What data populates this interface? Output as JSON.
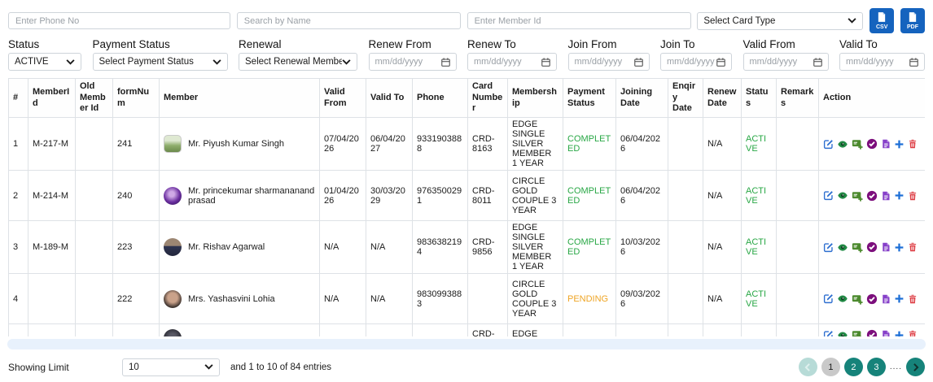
{
  "toolbar": {
    "phone_placeholder": "Enter Phone No",
    "name_placeholder": "Search by Name",
    "member_id_placeholder": "Enter Member Id",
    "card_type_value": "Select Card Type",
    "csv_label": "CSV",
    "pdf_label": "PDF",
    "export_button_color": "#1563be"
  },
  "filters": [
    {
      "id": "status",
      "label": "Status",
      "type": "select",
      "value": "ACTIVE",
      "width": "fw90"
    },
    {
      "id": "payment-status",
      "label": "Payment Status",
      "type": "select",
      "value": "Select Payment Status",
      "width": "fw166"
    },
    {
      "id": "renewal",
      "label": "Renewal",
      "type": "select",
      "value": "Select Renewal Members",
      "width": "fw146"
    },
    {
      "id": "renew-from",
      "label": "Renew From",
      "type": "date",
      "value": "mm/dd/yyyy",
      "width": "fw108"
    },
    {
      "id": "renew-to",
      "label": "Renew To",
      "type": "date",
      "value": "mm/dd/yyyy",
      "width": "fw110"
    },
    {
      "id": "join-from",
      "label": "Join From",
      "type": "date",
      "value": "mm/dd/yyyy",
      "width": "fw100"
    },
    {
      "id": "join-to",
      "label": "Join To",
      "type": "date",
      "value": "mm/dd/yyyy",
      "width": "fw88"
    },
    {
      "id": "valid-from",
      "label": "Valid From",
      "type": "date",
      "value": "mm/dd/yyyy",
      "width": "fw105"
    },
    {
      "id": "valid-to",
      "label": "Valid To",
      "type": "date",
      "value": "mm/dd/yyyy",
      "width": "fw105"
    }
  ],
  "table": {
    "headers": [
      "#",
      "MemberId",
      "Old Member Id",
      "formNum",
      "Member",
      "Valid From",
      "Valid To",
      "Phone",
      "Card Number",
      "Membership",
      "Payment Status",
      "Joining Date",
      "Enqiry Date",
      "Renew Date",
      "Status",
      "Remarks",
      "Action"
    ],
    "action_icons": [
      "edit",
      "view",
      "card-add",
      "approve",
      "document",
      "add",
      "delete"
    ],
    "rows": [
      {
        "num": "1",
        "member_id": "M-217-M",
        "old_member_id": "",
        "form_num": "241",
        "avatar": "photo-landscape",
        "member": "Mr. Piyush Kumar Singh",
        "valid_from": "07/04/2026",
        "valid_to": "06/04/2027",
        "phone": "9331903888",
        "card_number": "CRD-8163",
        "membership": "EDGE SINGLE SILVER MEMBER 1 YEAR",
        "payment_status": "COMPLETED",
        "joining_date": "06/04/2026",
        "enqiry_date": "",
        "renew_date": "N/A",
        "status": "ACTIVE",
        "remarks": "",
        "partial": false
      },
      {
        "num": "2",
        "member_id": "M-214-M",
        "old_member_id": "",
        "form_num": "240",
        "avatar": "purple-gem",
        "member": "Mr. princekumar sharmananand prasad",
        "valid_from": "01/04/2026",
        "valid_to": "30/03/2029",
        "phone": "9763500291",
        "card_number": "CRD-8011",
        "membership": "CIRCLE GOLD COUPLE 3 YEAR",
        "payment_status": "COMPLETED",
        "joining_date": "06/04/2026",
        "enqiry_date": "",
        "renew_date": "N/A",
        "status": "ACTIVE",
        "remarks": "",
        "partial": false
      },
      {
        "num": "3",
        "member_id": "M-189-M",
        "old_member_id": "",
        "form_num": "223",
        "avatar": "photo-male",
        "member": "Mr. Rishav  Agarwal",
        "valid_from": "N/A",
        "valid_to": "N/A",
        "phone": "9836382194",
        "card_number": "CRD-9856",
        "membership": "EDGE SINGLE SILVER MEMBER 1 YEAR",
        "payment_status": "COMPLETED",
        "joining_date": "10/03/2026",
        "enqiry_date": "",
        "renew_date": "N/A",
        "status": "ACTIVE",
        "remarks": "",
        "partial": false
      },
      {
        "num": "4",
        "member_id": "",
        "old_member_id": "",
        "form_num": "222",
        "avatar": "photo-female",
        "member": "Mrs. Yashasvini  Lohia",
        "valid_from": "N/A",
        "valid_to": "N/A",
        "phone": "9830993883",
        "card_number": "",
        "membership": "CIRCLE GOLD COUPLE 3 YEAR",
        "payment_status": "PENDING",
        "joining_date": "09/03/2026",
        "enqiry_date": "",
        "renew_date": "N/A",
        "status": "ACTIVE",
        "remarks": "",
        "partial": false
      },
      {
        "num": "",
        "member_id": "",
        "old_member_id": "",
        "form_num": "",
        "avatar": "photo-dark",
        "member": "",
        "valid_from": "",
        "valid_to": "",
        "phone": "",
        "card_number": "CRD-",
        "membership": "EDGE SILVER",
        "payment_status": "",
        "joining_date": "",
        "enqiry_date": "",
        "renew_date": "",
        "status": "",
        "remarks": "",
        "partial": true
      }
    ]
  },
  "status_colors": {
    "COMPLETED": "#28a745",
    "PENDING": "#efa525",
    "ACTIVE": "#28a745"
  },
  "footer": {
    "showing_limit_label": "Showing Limit",
    "limit_value": "10",
    "entries_text": "and 1 to 10 of 84 entries",
    "pagination_accent": "#16837a",
    "pagination": [
      {
        "type": "prev",
        "disabled": true
      },
      {
        "type": "page",
        "label": "1",
        "current": true
      },
      {
        "type": "page",
        "label": "2",
        "current": false
      },
      {
        "type": "page",
        "label": "3",
        "current": false
      },
      {
        "type": "ellipsis",
        "label": "...."
      },
      {
        "type": "next",
        "disabled": false
      }
    ]
  }
}
